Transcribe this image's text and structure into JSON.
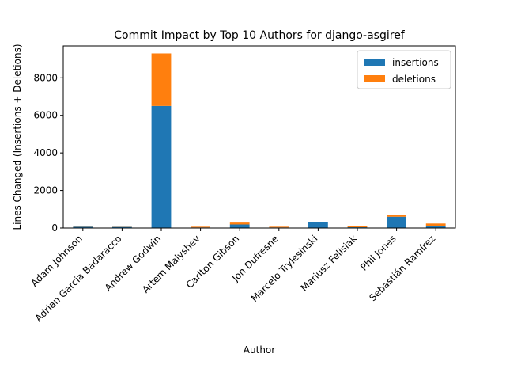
{
  "chart_data": {
    "type": "bar",
    "stacked": true,
    "title": "Commit Impact by Top 10 Authors for django-asgiref",
    "xlabel": "Author",
    "ylabel": "Lines Changed (Insertions + Deletions)",
    "categories": [
      "Adam Johnson",
      "Adrian Garcia Badaracco",
      "Andrew Godwin",
      "Artem Malyshev",
      "Carlton Gibson",
      "Jon Dufresne",
      "Marcelo Trylesinski",
      "Mariusz Felisiak",
      "Phil Jones",
      "Sebastián Ramírez"
    ],
    "series": [
      {
        "name": "insertions",
        "color": "#1f77b4",
        "values": [
          70,
          60,
          6500,
          30,
          190,
          30,
          300,
          40,
          600,
          120
        ]
      },
      {
        "name": "deletions",
        "color": "#ff7f0e",
        "values": [
          10,
          10,
          2800,
          40,
          100,
          40,
          0,
          70,
          80,
          120
        ]
      }
    ],
    "ylim": [
      0,
      9700
    ],
    "yticks": [
      0,
      2000,
      4000,
      6000,
      8000
    ],
    "ytick_labels": [
      "0",
      "2000",
      "4000",
      "6000",
      "8000"
    ],
    "grid": false,
    "legend_position": "top-right"
  }
}
